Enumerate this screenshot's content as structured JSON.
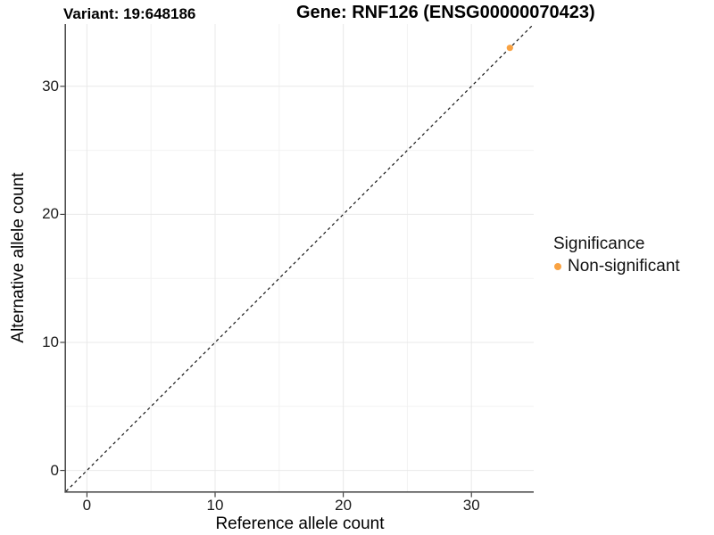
{
  "chart_data": {
    "type": "scatter",
    "title_left": "Variant: 19:648186",
    "title_right": "Gene: RNF126 (ENSG00000070423)",
    "xlabel": "Reference allele count",
    "ylabel": "Alternative allele count",
    "xlim": [
      -1.63,
      34.86
    ],
    "ylim": [
      -1.63,
      34.86
    ],
    "x_ticks": [
      0,
      10,
      20,
      30
    ],
    "y_ticks": [
      0,
      10,
      20,
      30
    ],
    "x_minor_ticks": [
      5,
      15,
      25
    ],
    "y_minor_ticks": [
      5,
      15,
      25
    ],
    "grid": "major+minor",
    "identity_line": {
      "slope": 1,
      "intercept": 0,
      "style": "dashed",
      "color": "#141414"
    },
    "series": [
      {
        "name": "Non-significant",
        "color": "#F9A242",
        "points": [
          {
            "x": 33,
            "y": 33
          }
        ]
      }
    ],
    "legend": {
      "title": "Significance",
      "position": "right",
      "entries": [
        {
          "label": "Non-significant",
          "color": "#F9A242"
        }
      ]
    },
    "style": {
      "background": "#FFFFFF",
      "grid_major_color": "#E9E9E9",
      "grid_minor_color": "#F2F2F2",
      "axis_line_color": "#4D4D4D",
      "tick_mark_color": "#333333",
      "tick_label_color": "#1A1A1A",
      "text_color": "#000000"
    }
  }
}
